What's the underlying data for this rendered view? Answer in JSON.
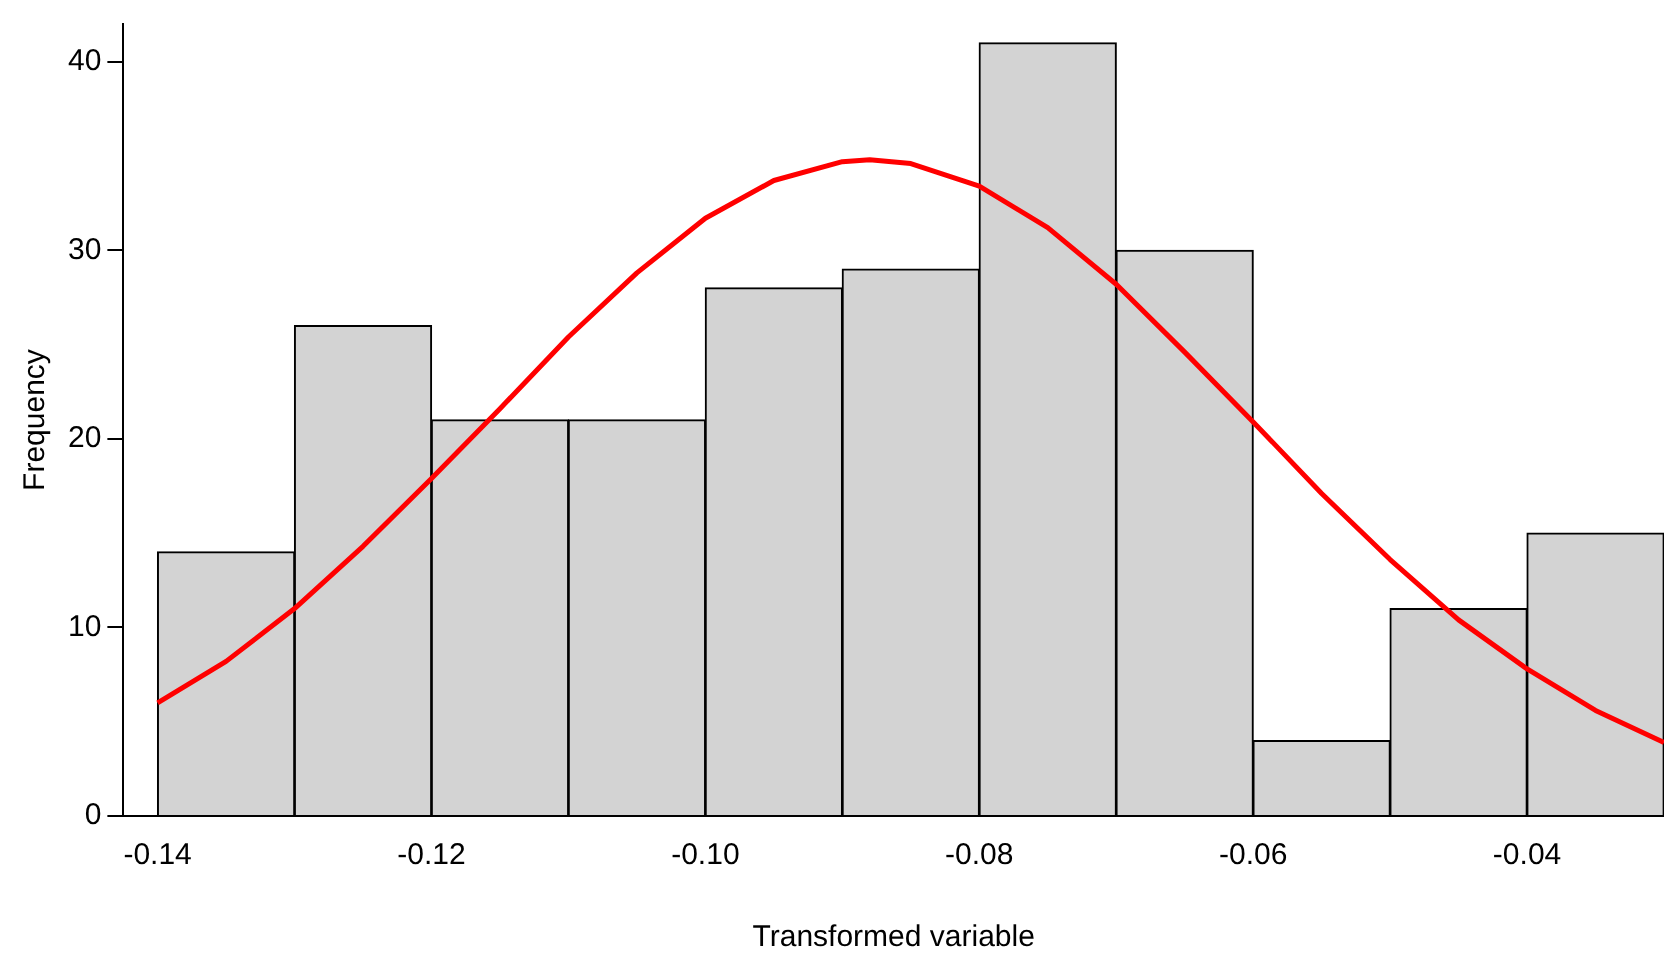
{
  "chart_data": {
    "type": "histogram",
    "xlabel": "Transformed variable",
    "ylabel": "Frequency",
    "bins": [
      -0.14,
      -0.13,
      -0.12,
      -0.11,
      -0.1,
      -0.09,
      -0.08,
      -0.07,
      -0.06,
      -0.05,
      -0.04,
      -0.03
    ],
    "values": [
      14,
      26,
      21,
      21,
      28,
      29,
      41,
      30,
      4,
      11,
      15
    ],
    "color": "#d3d3d3",
    "series": [
      {
        "type": "line",
        "color": "#ff0000",
        "x": [
          -0.14,
          -0.135,
          -0.13,
          -0.125,
          -0.12,
          -0.115,
          -0.11,
          -0.105,
          -0.1,
          -0.095,
          -0.09,
          -0.088,
          -0.085,
          -0.08,
          -0.075,
          -0.07,
          -0.065,
          -0.06,
          -0.055,
          -0.05,
          -0.045,
          -0.04,
          -0.035,
          -0.03
        ],
        "values": [
          6.0,
          8.2,
          11.0,
          14.3,
          17.9,
          21.6,
          25.4,
          28.8,
          31.7,
          33.7,
          34.7,
          34.8,
          34.6,
          33.4,
          31.2,
          28.2,
          24.6,
          20.9,
          17.1,
          13.6,
          10.4,
          7.8,
          5.6,
          3.9
        ]
      }
    ],
    "xlim": [
      -0.1425,
      -0.03
    ],
    "xticks": [
      {
        "value": -0.14,
        "label": "-0.14"
      },
      {
        "value": -0.12,
        "label": "-0.12"
      },
      {
        "value": -0.1,
        "label": "-0.10"
      },
      {
        "value": -0.08,
        "label": "-0.08"
      },
      {
        "value": -0.06,
        "label": "-0.06"
      },
      {
        "value": -0.04,
        "label": "-0.04"
      }
    ],
    "ylim": [
      0,
      42
    ],
    "yticks": [
      0,
      10,
      20,
      30,
      40
    ],
    "grid": false,
    "legend": false,
    "marker": "none",
    "line_style": "solid"
  }
}
